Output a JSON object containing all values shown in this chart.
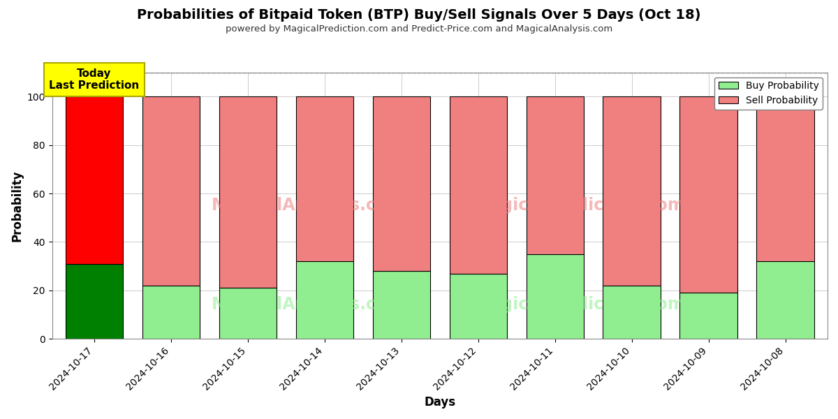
{
  "title": "Probabilities of Bitpaid Token (BTP) Buy/Sell Signals Over 5 Days (Oct 18)",
  "subtitle": "powered by MagicalPrediction.com and Predict-Price.com and MagicalAnalysis.com",
  "xlabel": "Days",
  "ylabel": "Probability",
  "categories": [
    "2024-10-17",
    "2024-10-16",
    "2024-10-15",
    "2024-10-14",
    "2024-10-13",
    "2024-10-12",
    "2024-10-11",
    "2024-10-10",
    "2024-10-09",
    "2024-10-08"
  ],
  "buy_values": [
    31,
    22,
    21,
    32,
    28,
    27,
    35,
    22,
    19,
    32
  ],
  "sell_values": [
    69,
    78,
    79,
    68,
    72,
    73,
    65,
    78,
    81,
    68
  ],
  "today_buy_color": "#008000",
  "today_sell_color": "#ff0000",
  "buy_color": "#90EE90",
  "sell_color": "#F08080",
  "bar_edge_color": "#000000",
  "today_annotation_bg": "#ffff00",
  "today_annotation_text": "Today\nLast Prediction",
  "legend_buy_label": "Buy Probability",
  "legend_sell_label": "Sell Probability",
  "ylim": [
    0,
    110
  ],
  "yticks": [
    0,
    20,
    40,
    60,
    80,
    100
  ],
  "dashed_line_y": 110,
  "background_color": "#ffffff",
  "grid_color": "#cccccc"
}
